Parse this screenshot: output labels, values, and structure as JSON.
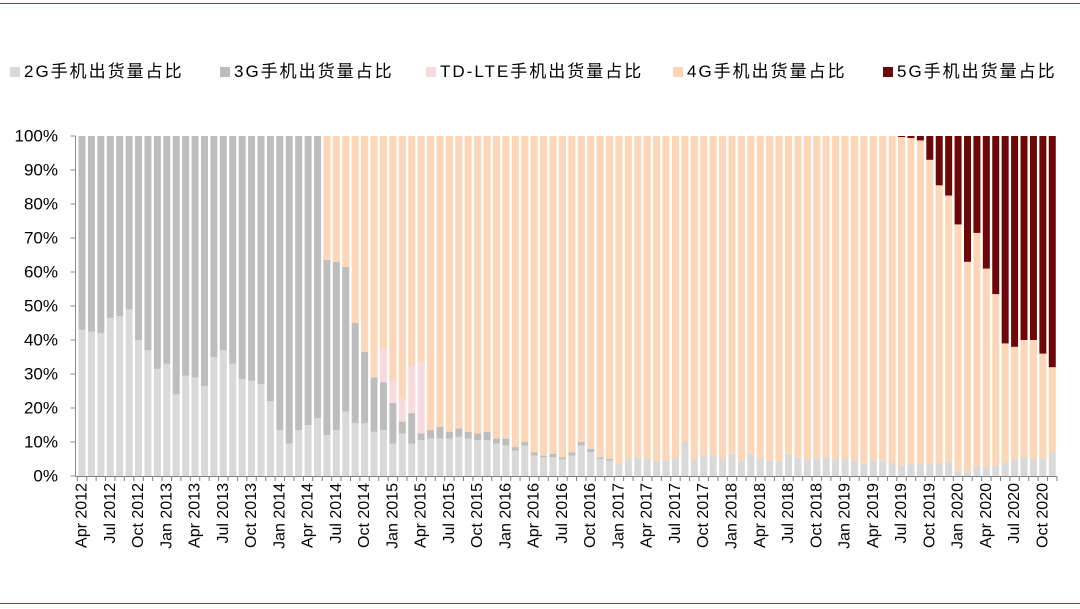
{
  "chart_data": {
    "type": "bar",
    "stacked": true,
    "percent_scale": true,
    "grid": false,
    "legend_position": "top",
    "ylim": [
      0,
      100
    ],
    "y_tick_labels": [
      "0%",
      "10%",
      "20%",
      "30%",
      "40%",
      "50%",
      "60%",
      "70%",
      "80%",
      "90%",
      "100%"
    ],
    "categories": [
      "Apr 2012",
      "",
      "",
      "Jul 2012",
      "",
      "",
      "Oct 2012",
      "",
      "",
      "Jan 2013",
      "",
      "",
      "Apr 2013",
      "",
      "",
      "Jul 2013",
      "",
      "",
      "Oct 2013",
      "",
      "",
      "Jan 2014",
      "",
      "",
      "Apr 2014",
      "",
      "",
      "Jul 2014",
      "",
      "",
      "Oct 2014",
      "",
      "",
      "Jan 2015",
      "",
      "",
      "Apr 2015",
      "",
      "",
      "Jul 2015",
      "",
      "",
      "Oct 2015",
      "",
      "",
      "Jan 2016",
      "",
      "",
      "Apr 2016",
      "",
      "",
      "Jul 2016",
      "",
      "",
      "Oct 2016",
      "",
      "",
      "Jan 2017",
      "",
      "",
      "Apr 2017",
      "",
      "",
      "Jul 2017",
      "",
      "",
      "Oct 2017",
      "",
      "",
      "Jan 2018",
      "",
      "",
      "Apr 2018",
      "",
      "",
      "Jul 2018",
      "",
      "",
      "Oct 2018",
      "",
      "",
      "Jan 2019",
      "",
      "",
      "Apr 2019",
      "",
      "",
      "Jul 2019",
      "",
      "",
      "Oct 2019",
      "",
      "",
      "Jan 2020",
      "",
      "",
      "Apr 2020",
      "",
      "",
      "Jul 2020",
      "",
      "",
      "Oct 2020",
      ""
    ],
    "series": [
      {
        "name": "2G手机出货量占比",
        "color": "#d9d9d9",
        "values": [
          43,
          42.5,
          42,
          46.5,
          47,
          49,
          40,
          37,
          31.5,
          33,
          24,
          29.5,
          29,
          26.5,
          35,
          37,
          33,
          28.5,
          28,
          27,
          22,
          13.5,
          9.5,
          13.5,
          15,
          17,
          12,
          13.5,
          19,
          15.5,
          15.5,
          13,
          13.5,
          9.5,
          12.5,
          9.5,
          10.5,
          11,
          11,
          11,
          11.5,
          11,
          10.5,
          10.5,
          9.5,
          9,
          7.5,
          9,
          6,
          5.5,
          5.5,
          5,
          6,
          9,
          7,
          5,
          4.5,
          3.5,
          5,
          5.5,
          5,
          4.5,
          4.5,
          5,
          10,
          5,
          6,
          6,
          5,
          6.5,
          4.5,
          6.5,
          5,
          4.5,
          4.5,
          6.5,
          5.5,
          5,
          5,
          5.5,
          5,
          5,
          4.5,
          3.5,
          4.5,
          4.5,
          4,
          3,
          3.5,
          3.5,
          3.5,
          4,
          4.5,
          1.5,
          1,
          3,
          2.5,
          3,
          4,
          5,
          5.5,
          5,
          5,
          7
        ]
      },
      {
        "name": "3G手机出货量占比",
        "color": "#bdbdbd",
        "values": [
          57,
          57.5,
          58,
          53.5,
          53,
          51,
          60,
          63,
          68.5,
          67,
          76,
          70.5,
          71,
          73.5,
          65,
          63,
          67,
          71.5,
          72,
          73,
          78,
          86.5,
          90.5,
          86.5,
          85,
          83,
          51.5,
          49.5,
          42.5,
          29.5,
          21,
          16,
          14,
          12,
          3.5,
          9,
          2,
          2.5,
          3.5,
          2,
          2.5,
          2,
          2,
          2.5,
          1.5,
          2,
          1,
          1,
          1,
          0.5,
          1,
          0.5,
          1,
          1,
          1,
          0.5,
          0.5,
          0,
          0,
          0,
          0,
          0,
          0,
          0,
          0,
          0,
          0,
          0,
          0,
          0,
          0,
          0,
          0,
          0,
          0,
          0,
          0,
          0,
          0,
          0,
          0,
          0,
          0,
          0,
          0,
          0,
          0,
          0,
          0,
          0,
          0,
          0,
          0,
          0,
          0,
          0,
          0,
          0,
          0,
          0,
          0,
          0,
          0,
          0
        ]
      },
      {
        "name": "TD-LTE手机出货量占比",
        "color": "#f8dadd",
        "values": [
          0,
          0,
          0,
          0,
          0,
          0,
          0,
          0,
          0,
          0,
          0,
          0,
          0,
          0,
          0,
          0,
          0,
          0,
          0,
          0,
          0,
          0,
          0,
          0,
          0,
          0,
          0,
          0,
          0,
          0,
          0,
          0,
          9.5,
          6.5,
          7,
          14,
          21,
          0,
          0,
          0,
          0,
          0,
          0,
          0,
          0,
          0,
          0,
          0,
          0,
          0,
          0,
          0,
          0,
          0,
          0,
          0,
          0,
          0,
          0,
          0,
          0,
          0,
          0,
          0,
          0,
          0,
          0,
          0,
          0,
          0,
          0,
          0,
          0,
          0,
          0,
          0,
          0,
          0,
          0,
          0,
          0,
          0,
          0,
          0,
          0,
          0,
          0,
          0,
          0,
          0,
          0,
          0,
          0,
          0,
          0,
          0,
          0,
          0,
          0,
          0,
          0,
          0,
          0,
          0
        ]
      },
      {
        "name": "4G手机出货量占比",
        "color": "#fcd6b6",
        "values": [
          0,
          0,
          0,
          0,
          0,
          0,
          0,
          0,
          0,
          0,
          0,
          0,
          0,
          0,
          0,
          0,
          0,
          0,
          0,
          0,
          0,
          0,
          0,
          0,
          0,
          0,
          36.5,
          37,
          38.5,
          55,
          63.5,
          71,
          63,
          72,
          77,
          67.5,
          66.5,
          86.5,
          85.5,
          87,
          86,
          87,
          87.5,
          87,
          89,
          89,
          91.5,
          90,
          93,
          94,
          93.5,
          94.5,
          93,
          90,
          92,
          94.5,
          95,
          96.5,
          95,
          94.5,
          95,
          95.5,
          95.5,
          95,
          90,
          95,
          94,
          94,
          95,
          93.5,
          95.5,
          93.5,
          95,
          95.5,
          95.5,
          93.5,
          94.5,
          95,
          95,
          94.5,
          95,
          95,
          95.5,
          96.5,
          95.5,
          95.5,
          96,
          96.7,
          95.9,
          95.2,
          89.5,
          81.5,
          78,
          72.5,
          62,
          68.5,
          58.5,
          50.5,
          35,
          33,
          34.5,
          35,
          31,
          25
        ]
      },
      {
        "name": "5G手机出货量占比",
        "color": "#6e0707",
        "values": [
          0,
          0,
          0,
          0,
          0,
          0,
          0,
          0,
          0,
          0,
          0,
          0,
          0,
          0,
          0,
          0,
          0,
          0,
          0,
          0,
          0,
          0,
          0,
          0,
          0,
          0,
          0,
          0,
          0,
          0,
          0,
          0,
          0,
          0,
          0,
          0,
          0,
          0,
          0,
          0,
          0,
          0,
          0,
          0,
          0,
          0,
          0,
          0,
          0,
          0,
          0,
          0,
          0,
          0,
          0,
          0,
          0,
          0,
          0,
          0,
          0,
          0,
          0,
          0,
          0,
          0,
          0,
          0,
          0,
          0,
          0,
          0,
          0,
          0,
          0,
          0,
          0,
          0,
          0,
          0,
          0,
          0,
          0,
          0,
          0,
          0,
          0,
          0.3,
          0.6,
          1.3,
          7,
          14.5,
          17.5,
          26,
          37,
          28.5,
          39,
          46.5,
          61,
          62,
          60,
          60,
          64,
          68
        ]
      }
    ]
  }
}
